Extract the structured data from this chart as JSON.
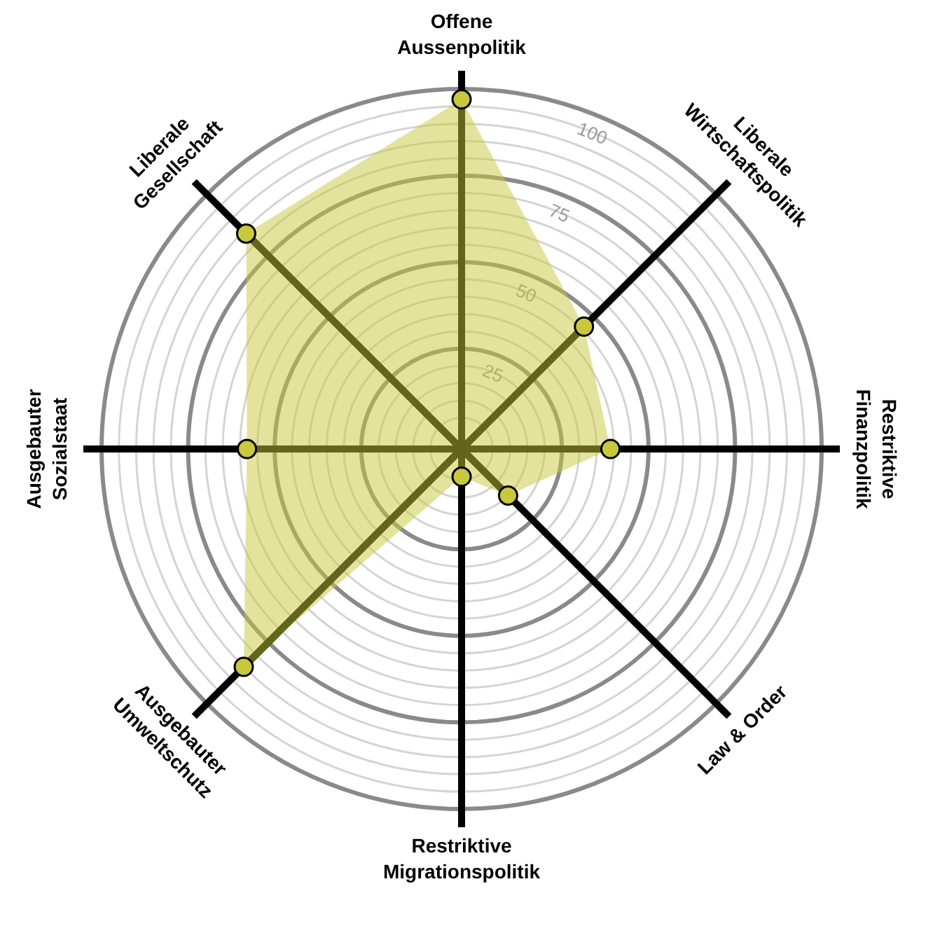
{
  "chart_data": {
    "type": "radar",
    "categories": [
      "Offene\nAussenpolitik",
      "Liberale\nWirtschaftspolitik",
      "Restriktive\nFinanzpolitik",
      "Law & Order",
      "Restriktive\nMigrationspolitik",
      "Ausgebauter\nUmweltschutz",
      "Ausgebauter\nSozialstaat",
      "Liberale\nGesellschaft"
    ],
    "series": [
      {
        "color": "#c8c83c",
        "values": [
          97,
          46,
          39,
          15,
          4,
          85,
          58,
          84
        ]
      }
    ],
    "ylim": [
      -4,
      100
    ],
    "yticks": [
      25,
      50,
      75,
      100
    ],
    "grid": true,
    "marker": "circle"
  }
}
